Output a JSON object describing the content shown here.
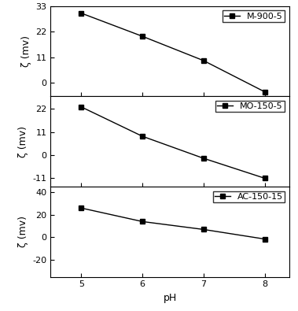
{
  "chart_data": [
    {
      "type": "line",
      "ylabel": "ζ (mv)",
      "x": [
        5,
        6,
        7,
        8
      ],
      "series": [
        {
          "name": "M-900-5",
          "color": "#000000",
          "marker": "square",
          "line_style": "solid",
          "values": [
            30,
            20,
            9.5,
            -4
          ]
        }
      ],
      "xlim": [
        4.5,
        8.4
      ],
      "xticks": [
        5,
        6,
        7,
        8
      ],
      "ylim": [
        -6,
        33
      ],
      "yticks": [
        0,
        11,
        22,
        33
      ],
      "legend": "upper right",
      "tick_labels": "y"
    },
    {
      "type": "line",
      "ylabel": "ζ (mv)",
      "x": [
        5,
        6,
        7,
        8
      ],
      "series": [
        {
          "name": "MO-150-5",
          "color": "#000000",
          "marker": "square",
          "line_style": "solid",
          "values": [
            23,
            9,
            -1.5,
            -11
          ]
        }
      ],
      "xlim": [
        4.5,
        8.4
      ],
      "xticks": [
        5,
        6,
        7,
        8
      ],
      "ylim": [
        -15,
        28
      ],
      "yticks": [
        -11,
        0,
        11,
        22
      ],
      "legend": "upper right",
      "tick_labels": "y"
    },
    {
      "type": "line",
      "ylabel": "ζ (mv)",
      "xlabel": "pH",
      "x": [
        5,
        6,
        7,
        8
      ],
      "series": [
        {
          "name": "AC-150-15",
          "color": "#000000",
          "marker": "square",
          "line_style": "solid",
          "values": [
            26,
            14,
            7,
            -1.5
          ]
        }
      ],
      "xlim": [
        4.5,
        8.4
      ],
      "xticks": [
        5,
        6,
        7,
        8
      ],
      "ylim": [
        -35,
        45
      ],
      "yticks": [
        -20,
        0,
        20,
        40
      ],
      "legend": "upper right"
    }
  ]
}
